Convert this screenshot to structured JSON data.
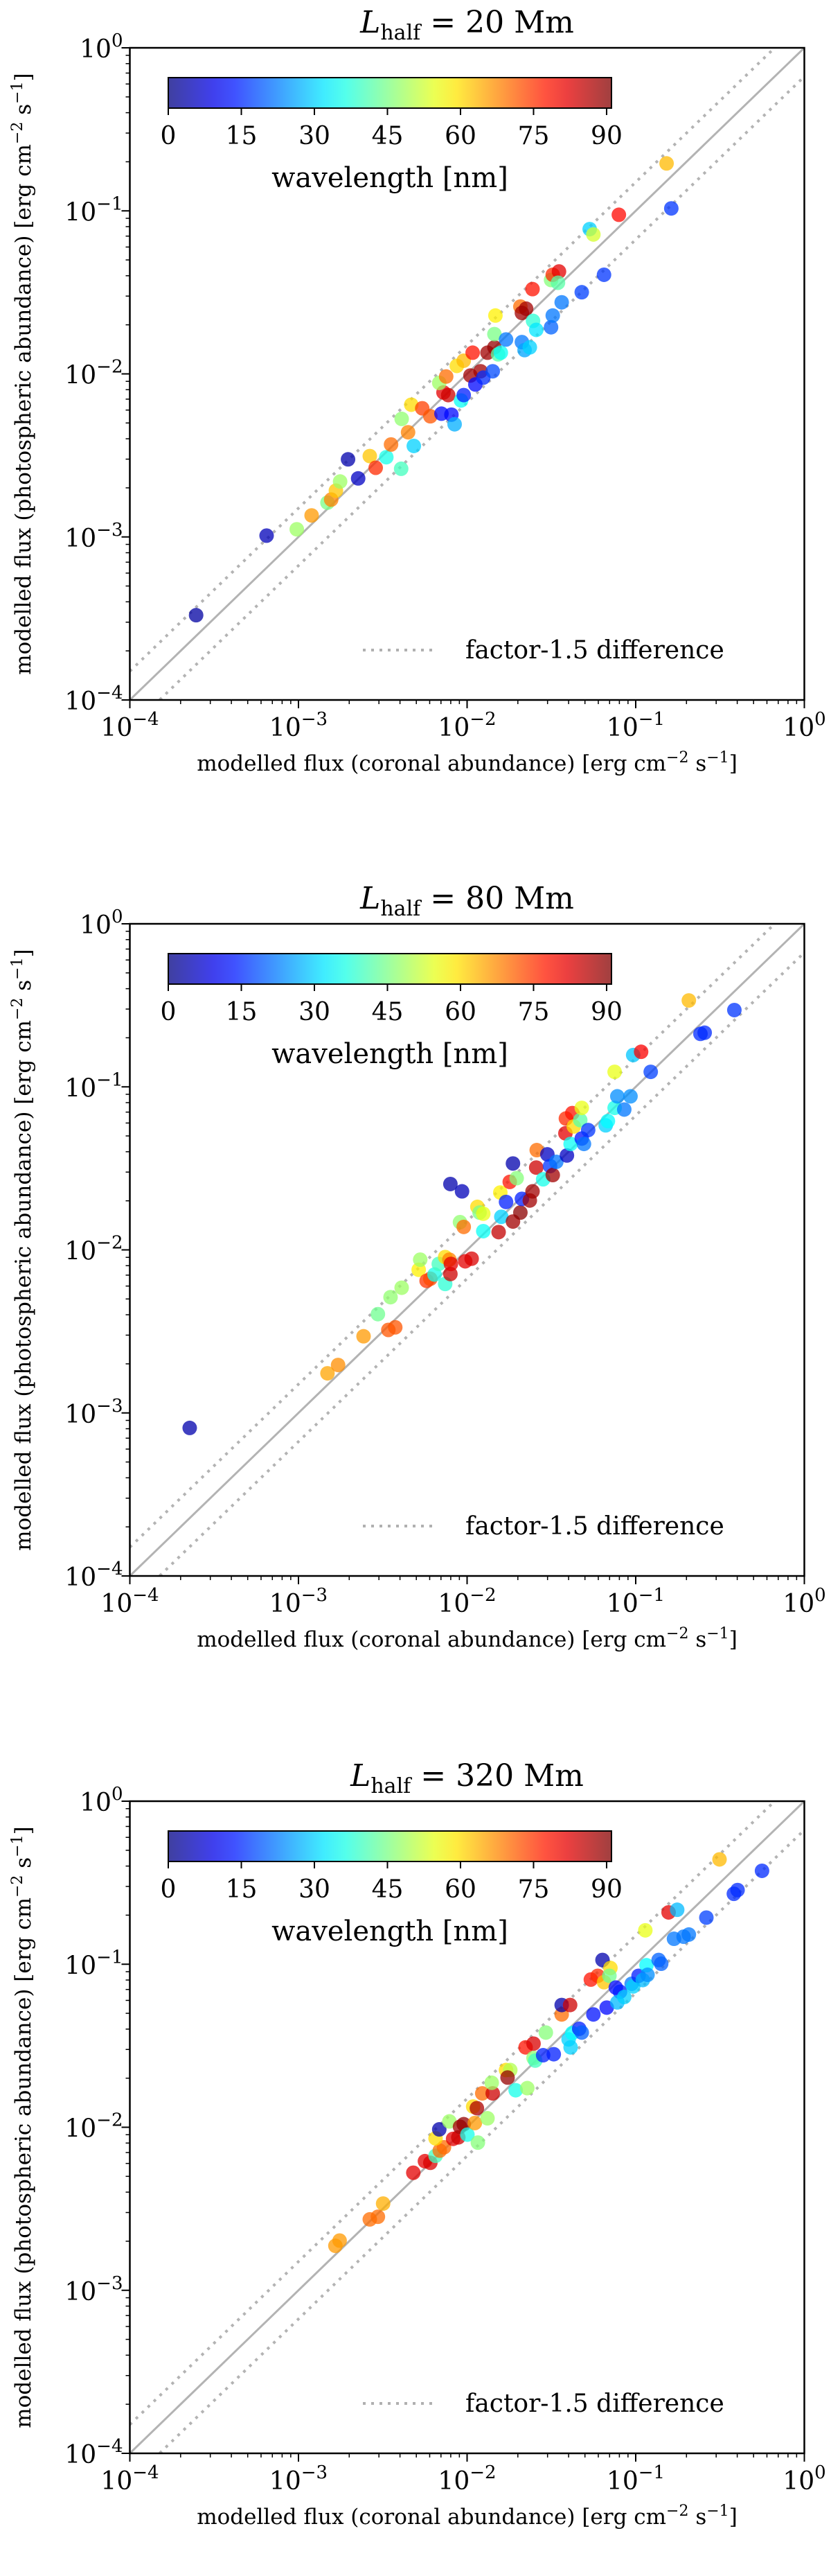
{
  "figure": {
    "colorbar": {
      "label": "wavelength  [nm]",
      "ticks": [
        "0",
        "15",
        "30",
        "45",
        "60",
        "75",
        "90"
      ],
      "range": [
        0,
        91
      ],
      "colormap": "jet"
    },
    "legend": {
      "label": "factor-1.5 difference",
      "line_color": "#b0b0b0"
    },
    "reference_line_color": "#b3b3b3"
  },
  "chart_data": [
    {
      "type": "scatter",
      "title": "L_half = 20 Mm",
      "title_parts": {
        "symbol": "L",
        "subscript": "half",
        "rest": " = 20 Mm"
      },
      "xlabel": "modelled flux (coronal abundance) [erg cm^-2 s^-1]",
      "ylabel": "modelled flux (photospheric abundance) [erg cm^-2 s^-1]",
      "xscale": "log",
      "yscale": "log",
      "xlim": [
        0.0001,
        1
      ],
      "ylim": [
        0.0001,
        1
      ],
      "xticks": [
        "10^-4",
        "10^-3",
        "10^-2",
        "10^-1",
        "10^0"
      ],
      "yticks": [
        "10^-4",
        "10^-3",
        "10^-2",
        "10^-1",
        "10^0"
      ],
      "legend": {
        "label": "factor-1.5 difference",
        "position": "lower-right"
      },
      "colorbar": {
        "label": "wavelength [nm]",
        "position": "upper-left",
        "ticks": [
          0,
          15,
          30,
          45,
          60,
          75,
          90
        ]
      },
      "lines": [
        {
          "name": "y = x",
          "style": "solid"
        },
        {
          "name": "y = 1.5x",
          "style": "dotted"
        },
        {
          "name": "y = x/1.5",
          "style": "dotted"
        }
      ],
      "point_format": [
        "log10_x",
        "log10_y",
        "wavelength_nm"
      ],
      "points": [
        [
          -3.607,
          -3.48,
          3
        ],
        [
          -3.189,
          -2.992,
          5
        ],
        [
          -3.01,
          -2.953,
          48
        ],
        [
          -2.922,
          -2.868,
          66
        ],
        [
          -2.828,
          -2.79,
          45
        ],
        [
          -2.806,
          -2.771,
          68
        ],
        [
          -2.778,
          -2.716,
          62
        ],
        [
          -2.753,
          -2.66,
          48
        ],
        [
          -2.706,
          -2.524,
          4
        ],
        [
          -2.646,
          -2.641,
          6
        ],
        [
          -2.577,
          -2.504,
          62
        ],
        [
          -2.542,
          -2.576,
          76
        ],
        [
          -2.479,
          -2.511,
          36
        ],
        [
          -2.451,
          -2.433,
          70
        ],
        [
          -2.391,
          -2.582,
          40
        ],
        [
          -2.388,
          -2.276,
          47
        ],
        [
          -2.331,
          -2.189,
          60
        ],
        [
          -2.35,
          -2.358,
          68
        ],
        [
          -2.316,
          -2.442,
          30
        ],
        [
          -2.266,
          -2.211,
          74
        ],
        [
          -2.218,
          -2.26,
          72
        ],
        [
          -2.152,
          -2.244,
          12
        ],
        [
          -2.14,
          -2.114,
          82
        ],
        [
          -2.112,
          -2.13,
          84
        ],
        [
          -2.093,
          -2.25,
          12
        ],
        [
          -2.074,
          -2.309,
          27
        ],
        [
          -2.165,
          -2.055,
          48
        ],
        [
          -2.124,
          -2.016,
          70
        ],
        [
          -2.036,
          -2.163,
          35
        ],
        [
          -2.02,
          -2.13,
          14
        ],
        [
          -2.061,
          -1.951,
          60
        ],
        [
          -2.02,
          -1.919,
          63
        ],
        [
          -1.98,
          -2.01,
          88
        ],
        [
          -1.967,
          -1.87,
          78
        ],
        [
          -1.951,
          -2.065,
          12
        ],
        [
          -1.92,
          -1.984,
          88
        ],
        [
          -1.904,
          -2.023,
          15
        ],
        [
          -1.879,
          -1.87,
          88
        ],
        [
          -1.838,
          -1.837,
          89
        ],
        [
          -1.848,
          -1.984,
          18
        ],
        [
          -1.816,
          -1.88,
          42
        ],
        [
          -1.838,
          -1.756,
          45
        ],
        [
          -1.8,
          -1.87,
          35
        ],
        [
          -1.832,
          -1.642,
          58
        ],
        [
          -1.769,
          -1.789,
          22
        ],
        [
          -1.684,
          -1.587,
          70
        ],
        [
          -1.675,
          -1.626,
          88
        ],
        [
          -1.65,
          -1.6,
          88
        ],
        [
          -1.675,
          -1.805,
          22
        ],
        [
          -1.659,
          -1.854,
          26
        ],
        [
          -1.628,
          -1.837,
          30
        ],
        [
          -1.609,
          -1.675,
          38
        ],
        [
          -1.612,
          -1.48,
          78
        ],
        [
          -1.59,
          -1.73,
          32
        ],
        [
          -1.502,
          -1.714,
          20
        ],
        [
          -1.492,
          -1.642,
          22
        ],
        [
          -1.502,
          -1.424,
          46
        ],
        [
          -1.492,
          -1.392,
          76
        ],
        [
          -1.455,
          -1.372,
          82
        ],
        [
          -1.461,
          -1.441,
          42
        ],
        [
          -1.439,
          -1.561,
          22
        ],
        [
          -1.32,
          -1.499,
          17
        ],
        [
          -1.188,
          -1.392,
          16
        ],
        [
          -1.273,
          -1.112,
          30
        ],
        [
          -1.251,
          -1.145,
          53
        ],
        [
          -1.1,
          -1.024,
          79
        ],
        [
          -0.817,
          -0.709,
          63
        ],
        [
          -0.789,
          -0.985,
          16
        ]
      ]
    },
    {
      "type": "scatter",
      "title": "L_half = 80 Mm",
      "title_parts": {
        "symbol": "L",
        "subscript": "half",
        "rest": " = 80 Mm"
      },
      "xlabel": "modelled flux (coronal abundance) [erg cm^-2 s^-1]",
      "ylabel": "modelled flux (photospheric abundance) [erg cm^-2 s^-1]",
      "xscale": "log",
      "yscale": "log",
      "xlim": [
        0.0001,
        1
      ],
      "ylim": [
        0.0001,
        1
      ],
      "xticks": [
        "10^-4",
        "10^-3",
        "10^-2",
        "10^-1",
        "10^0"
      ],
      "yticks": [
        "10^-4",
        "10^-3",
        "10^-2",
        "10^-1",
        "10^0"
      ],
      "legend": {
        "label": "factor-1.5 difference",
        "position": "lower-right"
      },
      "colorbar": {
        "label": "wavelength [nm]",
        "position": "upper-left",
        "ticks": [
          0,
          15,
          30,
          45,
          60,
          75,
          90
        ]
      },
      "lines": [
        {
          "name": "y = x",
          "style": "solid"
        },
        {
          "name": "y = 1.5x",
          "style": "dotted"
        },
        {
          "name": "y = x/1.5",
          "style": "dotted"
        }
      ],
      "point_format": [
        "log10_x",
        "log10_y",
        "wavelength_nm"
      ],
      "points": [
        [
          -3.645,
          -3.092,
          4
        ],
        [
          -2.828,
          -2.757,
          65
        ],
        [
          -2.765,
          -2.706,
          67
        ],
        [
          -2.614,
          -2.53,
          66
        ],
        [
          -2.529,
          -2.394,
          44
        ],
        [
          -2.467,
          -2.491,
          72
        ],
        [
          -2.426,
          -2.475,
          72
        ],
        [
          -2.454,
          -2.29,
          47
        ],
        [
          -2.388,
          -2.232,
          48
        ],
        [
          -2.287,
          -2.122,
          58
        ],
        [
          -2.278,
          -2.06,
          48
        ],
        [
          -2.24,
          -2.19,
          75
        ],
        [
          -2.218,
          -2.177,
          73
        ],
        [
          -2.193,
          -2.151,
          36
        ],
        [
          -2.168,
          -2.086,
          40
        ],
        [
          -2.13,
          -2.044,
          60
        ],
        [
          -2.105,
          -2.06,
          68
        ],
        [
          -2.13,
          -2.209,
          38
        ],
        [
          -2.099,
          -2.148,
          84
        ],
        [
          -2.096,
          -2.086,
          82
        ],
        [
          -2.011,
          -2.07,
          82
        ],
        [
          -1.973,
          -2.054,
          83
        ],
        [
          -2.099,
          -1.596,
          4
        ],
        [
          -2.03,
          -1.641,
          5
        ],
        [
          -2.042,
          -1.83,
          47
        ],
        [
          -2.02,
          -1.859,
          70
        ],
        [
          -1.939,
          -1.736,
          60
        ],
        [
          -1.926,
          -1.771,
          45
        ],
        [
          -1.904,
          -1.778,
          55
        ],
        [
          -1.904,
          -1.885,
          35
        ],
        [
          -1.813,
          -1.891,
          85
        ],
        [
          -1.797,
          -1.797,
          30
        ],
        [
          -1.803,
          -1.648,
          58
        ],
        [
          -1.769,
          -1.706,
          14
        ],
        [
          -1.747,
          -1.583,
          78
        ],
        [
          -1.728,
          -1.826,
          88
        ],
        [
          -1.706,
          -1.56,
          46
        ],
        [
          -1.728,
          -1.47,
          4
        ],
        [
          -1.684,
          -1.771,
          90
        ],
        [
          -1.675,
          -1.687,
          14
        ],
        [
          -1.628,
          -1.697,
          88
        ],
        [
          -1.612,
          -1.641,
          88
        ],
        [
          -1.59,
          -1.495,
          84
        ],
        [
          -1.587,
          -1.388,
          70
        ],
        [
          -1.549,
          -1.567,
          36
        ],
        [
          -1.524,
          -1.414,
          6
        ],
        [
          -1.508,
          -1.486,
          16
        ],
        [
          -1.492,
          -1.541,
          88
        ],
        [
          -1.471,
          -1.46,
          22
        ],
        [
          -1.417,
          -1.285,
          82
        ],
        [
          -1.414,
          -1.194,
          76
        ],
        [
          -1.408,
          -1.421,
          6
        ],
        [
          -1.386,
          -1.35,
          35
        ],
        [
          -1.376,
          -1.161,
          78
        ],
        [
          -1.367,
          -1.243,
          60
        ],
        [
          -1.329,
          -1.204,
          42
        ],
        [
          -1.32,
          -1.129,
          55
        ],
        [
          -1.32,
          -1.317,
          13
        ],
        [
          -1.307,
          -1.35,
          22
        ],
        [
          -1.282,
          -1.265,
          16
        ],
        [
          -1.178,
          -1.236,
          30
        ],
        [
          -1.165,
          -1.21,
          34
        ],
        [
          -1.125,
          -1.129,
          36
        ],
        [
          -1.109,
          -1.058,
          24
        ],
        [
          -1.068,
          -1.139,
          22
        ],
        [
          -1.031,
          -1.058,
          24
        ],
        [
          -1.125,
          -0.908,
          55
        ],
        [
          -1.015,
          -0.805,
          29
        ],
        [
          -0.968,
          -0.785,
          80
        ],
        [
          -0.911,
          -0.908,
          17
        ],
        [
          -0.685,
          -0.47,
          63
        ],
        [
          -0.616,
          -0.675,
          15
        ],
        [
          -0.591,
          -0.668,
          15
        ],
        [
          -0.415,
          -0.529,
          16
        ]
      ]
    },
    {
      "type": "scatter",
      "title": "L_half = 320 Mm",
      "title_parts": {
        "symbol": "L",
        "subscript": "half",
        "rest": " = 320 Mm"
      },
      "xlabel": "modelled flux (coronal abundance) [erg cm^-2 s^-1]",
      "ylabel": "modelled flux (photospheric abundance) [erg cm^-2 s^-1]",
      "xscale": "log",
      "yscale": "log",
      "xlim": [
        0.0001,
        1
      ],
      "ylim": [
        0.0001,
        1
      ],
      "xticks": [
        "10^-4",
        "10^-3",
        "10^-2",
        "10^-1",
        "10^0"
      ],
      "yticks": [
        "10^-4",
        "10^-3",
        "10^-2",
        "10^-1",
        "10^0"
      ],
      "legend": {
        "label": "factor-1.5 difference",
        "position": "lower-right"
      },
      "colorbar": {
        "label": "wavelength [nm]",
        "position": "upper-left",
        "ticks": [
          0,
          15,
          30,
          45,
          60,
          75,
          90
        ]
      },
      "lines": [
        {
          "name": "y = x",
          "style": "solid"
        },
        {
          "name": "y = 1.5x",
          "style": "dotted"
        },
        {
          "name": "y = x/1.5",
          "style": "dotted"
        }
      ],
      "point_format": [
        "log10_x",
        "log10_y",
        "wavelength_nm"
      ],
      "points": [
        [
          -2.781,
          -2.727,
          66
        ],
        [
          -2.756,
          -2.695,
          66
        ],
        [
          -2.577,
          -2.565,
          70
        ],
        [
          -2.529,
          -2.549,
          70
        ],
        [
          -2.498,
          -2.468,
          64
        ],
        [
          -2.319,
          -2.279,
          82
        ],
        [
          -2.25,
          -2.208,
          82
        ],
        [
          -2.218,
          -2.218,
          83
        ],
        [
          -2.187,
          -2.175,
          40
        ],
        [
          -2.162,
          -2.143,
          70
        ],
        [
          -2.137,
          -2.123,
          70
        ],
        [
          -2.187,
          -2.068,
          60
        ],
        [
          -2.165,
          -2.013,
          4
        ],
        [
          -2.105,
          -1.964,
          48
        ],
        [
          -2.083,
          -2.071,
          82
        ],
        [
          -2.052,
          -2.062,
          84
        ],
        [
          -2.042,
          -1.997,
          88
        ],
        [
          -2.02,
          -1.981,
          89
        ],
        [
          -1.998,
          -2.045,
          36
        ],
        [
          -1.954,
          -1.974,
          66
        ],
        [
          -1.964,
          -1.873,
          60
        ],
        [
          -1.942,
          -1.883,
          87
        ],
        [
          -1.936,
          -2.094,
          46
        ],
        [
          -1.879,
          -1.945,
          48
        ],
        [
          -1.91,
          -1.792,
          70
        ],
        [
          -1.848,
          -1.792,
          84
        ],
        [
          -1.854,
          -1.727,
          48
        ],
        [
          -1.769,
          -1.649,
          60
        ],
        [
          -1.744,
          -1.649,
          50
        ],
        [
          -1.76,
          -1.695,
          89
        ],
        [
          -1.712,
          -1.773,
          36
        ],
        [
          -1.643,
          -1.76,
          48
        ],
        [
          -1.653,
          -1.51,
          78
        ],
        [
          -1.606,
          -1.487,
          83
        ],
        [
          -1.606,
          -1.575,
          47
        ],
        [
          -1.596,
          -1.591,
          40
        ],
        [
          -1.549,
          -1.558,
          14
        ],
        [
          -1.486,
          -1.552,
          14
        ],
        [
          -1.533,
          -1.419,
          46
        ],
        [
          -1.439,
          -1.308,
          70
        ],
        [
          -1.439,
          -1.25,
          4
        ],
        [
          -1.389,
          -1.25,
          84
        ],
        [
          -1.398,
          -1.461,
          30
        ],
        [
          -1.386,
          -1.51,
          30
        ],
        [
          -1.376,
          -1.422,
          34
        ],
        [
          -1.335,
          -1.396,
          14
        ],
        [
          -1.32,
          -1.419,
          20
        ],
        [
          -1.251,
          -1.308,
          13
        ],
        [
          -1.172,
          -1.266,
          12
        ],
        [
          -1.266,
          -1.094,
          78
        ],
        [
          -1.225,
          -1.071,
          76
        ],
        [
          -1.197,
          -0.974,
          4
        ],
        [
          -1.15,
          -1.023,
          60
        ],
        [
          -1.188,
          -1.11,
          62
        ],
        [
          -1.156,
          -1.071,
          44
        ],
        [
          -1.118,
          -1.143,
          12
        ],
        [
          -1.093,
          -1.169,
          14
        ],
        [
          -1.109,
          -1.234,
          28
        ],
        [
          -1.068,
          -1.201,
          30
        ],
        [
          -1.024,
          -1.12,
          22
        ],
        [
          -1.015,
          -1.136,
          30
        ],
        [
          -0.983,
          -1.071,
          14
        ],
        [
          -0.958,
          -1.097,
          28
        ],
        [
          -0.936,
          -1.006,
          34
        ],
        [
          -0.93,
          -1.065,
          24
        ],
        [
          -0.864,
          -0.974,
          20
        ],
        [
          -0.849,
          -0.997,
          20
        ],
        [
          -0.943,
          -0.792,
          55
        ],
        [
          -0.805,
          -0.682,
          82
        ],
        [
          -0.754,
          -0.666,
          28
        ],
        [
          -0.773,
          -0.844,
          22
        ],
        [
          -0.716,
          -0.831,
          22
        ],
        [
          -0.685,
          -0.818,
          22
        ],
        [
          -0.581,
          -0.714,
          17
        ],
        [
          -0.503,
          -0.357,
          63
        ],
        [
          -0.418,
          -0.568,
          15
        ],
        [
          -0.396,
          -0.545,
          15
        ],
        [
          -0.251,
          -0.427,
          15
        ]
      ]
    }
  ]
}
